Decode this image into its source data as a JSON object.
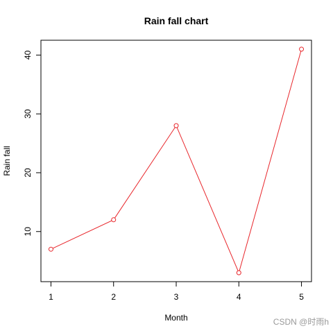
{
  "chart_data": {
    "type": "line",
    "title": "Rain fall chart",
    "x_label": "Month",
    "y_label": "Rain fall",
    "x": [
      1,
      2,
      3,
      4,
      5
    ],
    "values": [
      7,
      12,
      28,
      3,
      41
    ],
    "color": "#e8262b",
    "xlim": [
      0.84,
      5.16
    ],
    "ylim": [
      1.48,
      42.52
    ],
    "xticks": [
      1,
      2,
      3,
      4,
      5
    ],
    "yticks": [
      10,
      20,
      30,
      40
    ]
  },
  "watermark": "CSDN @时雨h"
}
